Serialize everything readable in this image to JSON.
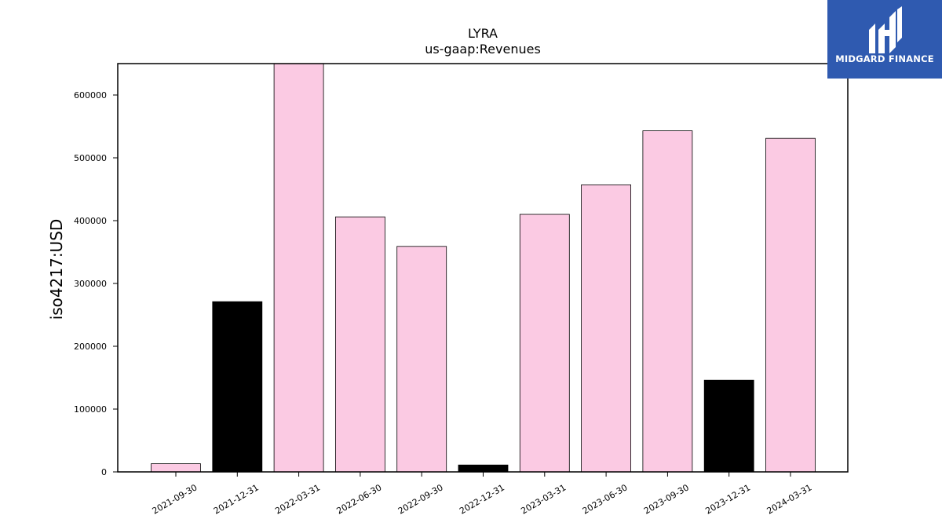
{
  "chart_data": {
    "type": "bar",
    "title": "LYRA",
    "subtitle": "us-gaap:Revenues",
    "xlabel": "",
    "ylabel": "iso4217:USD",
    "categories": [
      "2021-09-30",
      "2021-12-31",
      "2022-03-31",
      "2022-06-30",
      "2022-09-30",
      "2022-12-31",
      "2023-03-31",
      "2023-06-30",
      "2023-09-30",
      "2023-12-31",
      "2024-03-31"
    ],
    "values": [
      13000,
      271000,
      650000,
      406000,
      359000,
      11000,
      410000,
      457000,
      543000,
      146000,
      531000
    ],
    "bar_colors": [
      "#fbcae3",
      "#000000",
      "#fbcae3",
      "#fbcae3",
      "#fbcae3",
      "#000000",
      "#fbcae3",
      "#fbcae3",
      "#fbcae3",
      "#000000",
      "#fbcae3"
    ],
    "ylim": [
      0,
      650000
    ],
    "yticks": [
      0,
      100000,
      200000,
      300000,
      400000,
      500000,
      600000
    ],
    "ytick_labels": [
      "0",
      "100000",
      "200000",
      "300000",
      "400000",
      "500000",
      "600000"
    ],
    "grid": false
  },
  "logo": {
    "text": "MIDGARD FINANCE",
    "background": "#2f5ab0",
    "icon": "midgard-logo-icon"
  }
}
